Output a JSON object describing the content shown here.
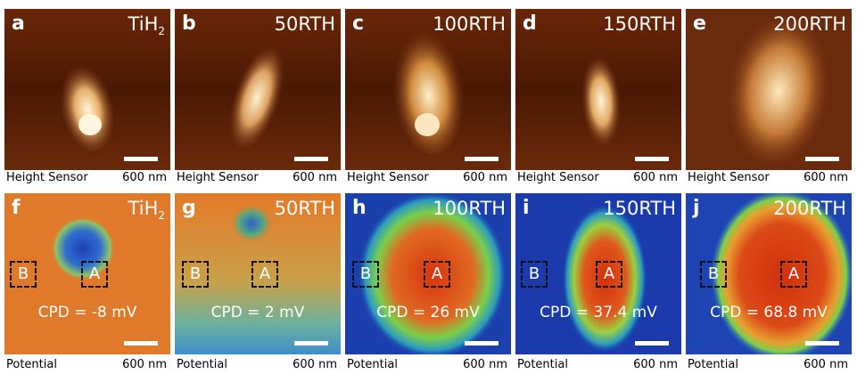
{
  "height_row": [
    {
      "letter": "a",
      "sample": "TiH",
      "sample_sub": "2",
      "caption": "Height Sensor",
      "scale": "600 nm"
    },
    {
      "letter": "b",
      "sample": "50RTH",
      "sample_sub": "",
      "caption": "Height Sensor",
      "scale": "600 nm"
    },
    {
      "letter": "c",
      "sample": "100RTH",
      "sample_sub": "",
      "caption": "Height Sensor",
      "scale": "600 nm"
    },
    {
      "letter": "d",
      "sample": "150RTH",
      "sample_sub": "",
      "caption": "Height Sensor",
      "scale": "600 nm"
    },
    {
      "letter": "e",
      "sample": "200RTH",
      "sample_sub": "",
      "caption": "Height Sensor",
      "scale": "600 nm"
    }
  ],
  "potential_row": [
    {
      "letter": "f",
      "sample": "TiH",
      "sample_sub": "2",
      "caption": "Potential",
      "scale": "600 nm",
      "box_a": "A",
      "box_b": "B",
      "cpd": "CPD = -8 mV"
    },
    {
      "letter": "g",
      "sample": "50RTH",
      "sample_sub": "",
      "caption": "Potential",
      "scale": "600 nm",
      "box_a": "A",
      "box_b": "B",
      "cpd": "CPD = 2 mV"
    },
    {
      "letter": "h",
      "sample": "100RTH",
      "sample_sub": "",
      "caption": "Potential",
      "scale": "600 nm",
      "box_a": "A",
      "box_b": "B",
      "cpd": "CPD = 26 mV"
    },
    {
      "letter": "i",
      "sample": "150RTH",
      "sample_sub": "",
      "caption": "Potential",
      "scale": "600 nm",
      "box_a": "A",
      "box_b": "B",
      "cpd": "CPD = 37.4 mV"
    },
    {
      "letter": "j",
      "sample": "200RTH",
      "sample_sub": "",
      "caption": "Potential",
      "scale": "600 nm",
      "box_a": "A",
      "box_b": "B",
      "cpd": "CPD = 68.8 mV"
    }
  ],
  "colors": {
    "height_bg": "#5a1e05",
    "height_particle_core": "#fff0c8",
    "height_particle_mid": "#d48a3a",
    "potential_low": "#1a3aa8",
    "potential_mid": "#3cbf5a",
    "potential_high": "#d43a12",
    "potential_bg_orange": "#e07a2a"
  }
}
